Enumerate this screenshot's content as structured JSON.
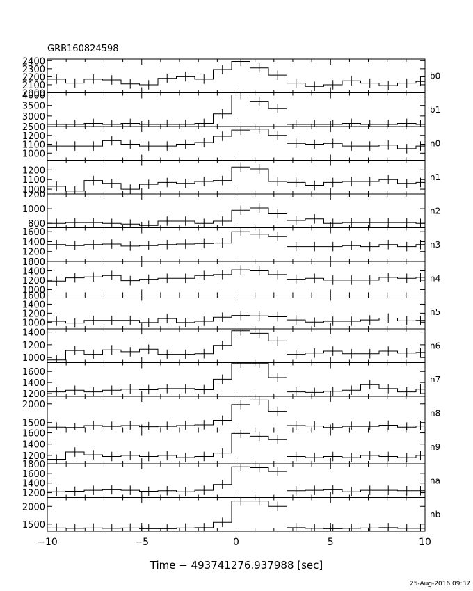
{
  "chart_data": {
    "type": "line",
    "title": "GRB160824598",
    "xlabel": "Time − 493741276.937988 [sec]",
    "xlim": [
      -10,
      10
    ],
    "xticks": [
      -10,
      -5,
      0,
      5,
      10
    ],
    "x_edges": [
      -10,
      -9.024,
      -8.048,
      -7.072,
      -6.096,
      -5.12,
      -4.144,
      -3.168,
      -2.192,
      -1.216,
      -0.24,
      0.736,
      1.712,
      2.688,
      3.664,
      4.64,
      5.616,
      6.592,
      7.568,
      8.544,
      9.52,
      10
    ],
    "timestamp": "25-Aug-2016 09:37",
    "grid": false,
    "panels": [
      {
        "name": "b0",
        "ylim": [
          2000,
          2420
        ],
        "yticks": [
          2000,
          2100,
          2200,
          2300,
          2400
        ],
        "values": [
          2170,
          2120,
          2170,
          2160,
          2110,
          2100,
          2180,
          2200,
          2170,
          2290,
          2390,
          2310,
          2220,
          2120,
          2080,
          2100,
          2150,
          2120,
          2090,
          2120,
          2140
        ]
      },
      {
        "name": "b1",
        "ylim": [
          2500,
          4100
        ],
        "yticks": [
          2500,
          3000,
          3500,
          4000
        ],
        "values": [
          2600,
          2600,
          2650,
          2600,
          2650,
          2600,
          2600,
          2600,
          2650,
          3100,
          4000,
          3700,
          3350,
          2600,
          2600,
          2600,
          2650,
          2600,
          2600,
          2650,
          2600
        ]
      },
      {
        "name": "n0",
        "ylim": [
          920,
          1300
        ],
        "yticks": [
          1000,
          1100,
          1200
        ],
        "values": [
          1080,
          1080,
          1080,
          1140,
          1100,
          1080,
          1080,
          1100,
          1120,
          1190,
          1260,
          1270,
          1200,
          1110,
          1100,
          1110,
          1080,
          1080,
          1090,
          1050,
          1080
        ]
      },
      {
        "name": "n1",
        "ylim": [
          950,
          1300
        ],
        "yticks": [
          1000,
          1100,
          1200
        ],
        "values": [
          1030,
          980,
          1090,
          1060,
          1000,
          1050,
          1070,
          1060,
          1080,
          1090,
          1230,
          1210,
          1080,
          1070,
          1040,
          1070,
          1080,
          1080,
          1100,
          1060,
          1070
        ]
      },
      {
        "name": "n2",
        "ylim": [
          740,
          1200
        ],
        "yticks": [
          800,
          1000,
          1200
        ],
        "values": [
          800,
          810,
          810,
          800,
          790,
          770,
          830,
          830,
          800,
          830,
          980,
          1010,
          930,
          840,
          860,
          800,
          810,
          810,
          810,
          810,
          800
        ]
      },
      {
        "name": "n3",
        "ylim": [
          1000,
          1680
        ],
        "yticks": [
          1000,
          1200,
          1400,
          1600
        ],
        "values": [
          1340,
          1320,
          1340,
          1350,
          1310,
          1320,
          1340,
          1350,
          1360,
          1370,
          1600,
          1550,
          1500,
          1300,
          1300,
          1300,
          1320,
          1300,
          1340,
          1300,
          1340
        ]
      },
      {
        "name": "n4",
        "ylim": [
          880,
          1600
        ],
        "yticks": [
          1000,
          1200,
          1400,
          1600
        ],
        "values": [
          1180,
          1250,
          1270,
          1300,
          1190,
          1220,
          1240,
          1240,
          1300,
          1320,
          1420,
          1400,
          1320,
          1220,
          1240,
          1200,
          1200,
          1200,
          1260,
          1240,
          1260
        ]
      },
      {
        "name": "n5",
        "ylim": [
          850,
          1600
        ],
        "yticks": [
          1000,
          1200,
          1400,
          1600
        ],
        "values": [
          1020,
          980,
          1040,
          1040,
          1040,
          990,
          1080,
          990,
          1020,
          1110,
          1150,
          1140,
          1120,
          1050,
          1000,
          1020,
          1020,
          1050,
          1090,
          1030,
          1040
        ]
      },
      {
        "name": "n6",
        "ylim": [
          920,
          1450
        ],
        "yticks": [
          1000,
          1200,
          1400
        ],
        "values": [
          960,
          1110,
          1050,
          1120,
          1090,
          1130,
          1050,
          1050,
          1060,
          1190,
          1420,
          1380,
          1260,
          1050,
          1070,
          1100,
          1060,
          1060,
          1100,
          1070,
          1080
        ]
      },
      {
        "name": "n7",
        "ylim": [
          1150,
          1760
        ],
        "yticks": [
          1200,
          1400,
          1600
        ],
        "values": [
          1230,
          1260,
          1230,
          1260,
          1280,
          1270,
          1290,
          1290,
          1270,
          1460,
          1750,
          1750,
          1490,
          1230,
          1220,
          1240,
          1260,
          1360,
          1290,
          1230,
          1280
        ]
      },
      {
        "name": "n8",
        "ylim": [
          1300,
          2200
        ],
        "yticks": [
          1500,
          2000
        ],
        "values": [
          1380,
          1370,
          1420,
          1400,
          1420,
          1390,
          1400,
          1420,
          1440,
          1560,
          1980,
          2100,
          1800,
          1420,
          1410,
          1370,
          1400,
          1400,
          1430,
          1380,
          1410
        ]
      },
      {
        "name": "n9",
        "ylim": [
          1050,
          1650
        ],
        "yticks": [
          1200,
          1400,
          1600
        ],
        "values": [
          1130,
          1260,
          1210,
          1180,
          1200,
          1180,
          1200,
          1160,
          1180,
          1240,
          1590,
          1540,
          1480,
          1180,
          1160,
          1180,
          1160,
          1200,
          1180,
          1160,
          1200
        ]
      },
      {
        "name": "na",
        "ylim": [
          1100,
          1800
        ],
        "yticks": [
          1200,
          1400,
          1600,
          1800
        ],
        "values": [
          1220,
          1230,
          1250,
          1260,
          1250,
          1230,
          1240,
          1220,
          1250,
          1370,
          1740,
          1720,
          1640,
          1240,
          1250,
          1260,
          1220,
          1250,
          1250,
          1240,
          1240
        ]
      },
      {
        "name": "nb",
        "ylim": [
          1300,
          2250
        ],
        "yticks": [
          1500,
          2000
        ],
        "values": [
          1390,
          1380,
          1390,
          1380,
          1390,
          1370,
          1370,
          1390,
          1400,
          1550,
          2150,
          2150,
          2000,
          1400,
          1380,
          1370,
          1380,
          1390,
          1400,
          1380,
          1380
        ]
      }
    ]
  }
}
